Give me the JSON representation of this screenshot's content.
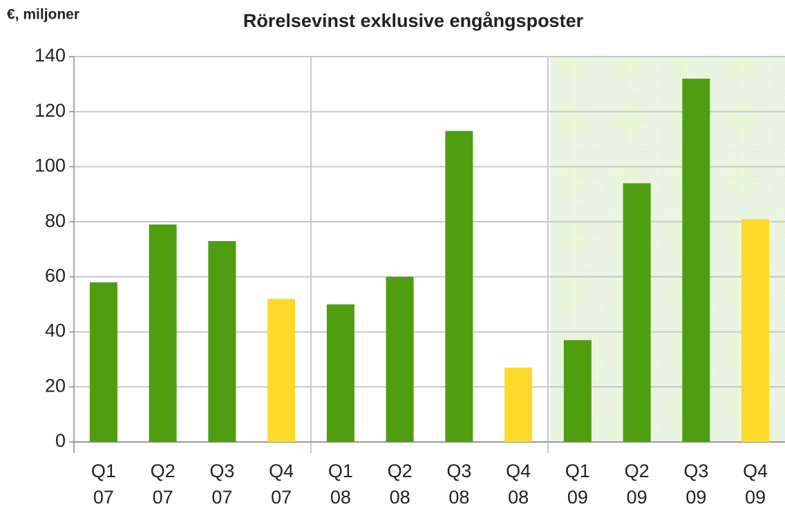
{
  "chart_data": {
    "type": "bar",
    "title": "Rörelsevinst exklusive engångsposter",
    "y_label": "€, miljoner",
    "categories": [
      "Q1 07",
      "Q2 07",
      "Q3 07",
      "Q4 07",
      "Q1 08",
      "Q2 08",
      "Q3 08",
      "Q4 08",
      "Q1 09",
      "Q2 09",
      "Q3 09",
      "Q4 09"
    ],
    "values": [
      58,
      79,
      73,
      52,
      50,
      60,
      113,
      27,
      37,
      94,
      132,
      81
    ],
    "colors": [
      "#4f9e0f",
      "#4f9e0f",
      "#4f9e0f",
      "#fdd92a",
      "#4f9e0f",
      "#4f9e0f",
      "#4f9e0f",
      "#fdd92a",
      "#4f9e0f",
      "#4f9e0f",
      "#4f9e0f",
      "#fdd92a"
    ],
    "ylim": [
      0,
      140
    ],
    "yticks": [
      0,
      20,
      40,
      60,
      80,
      100,
      120,
      140
    ],
    "grid": true
  }
}
